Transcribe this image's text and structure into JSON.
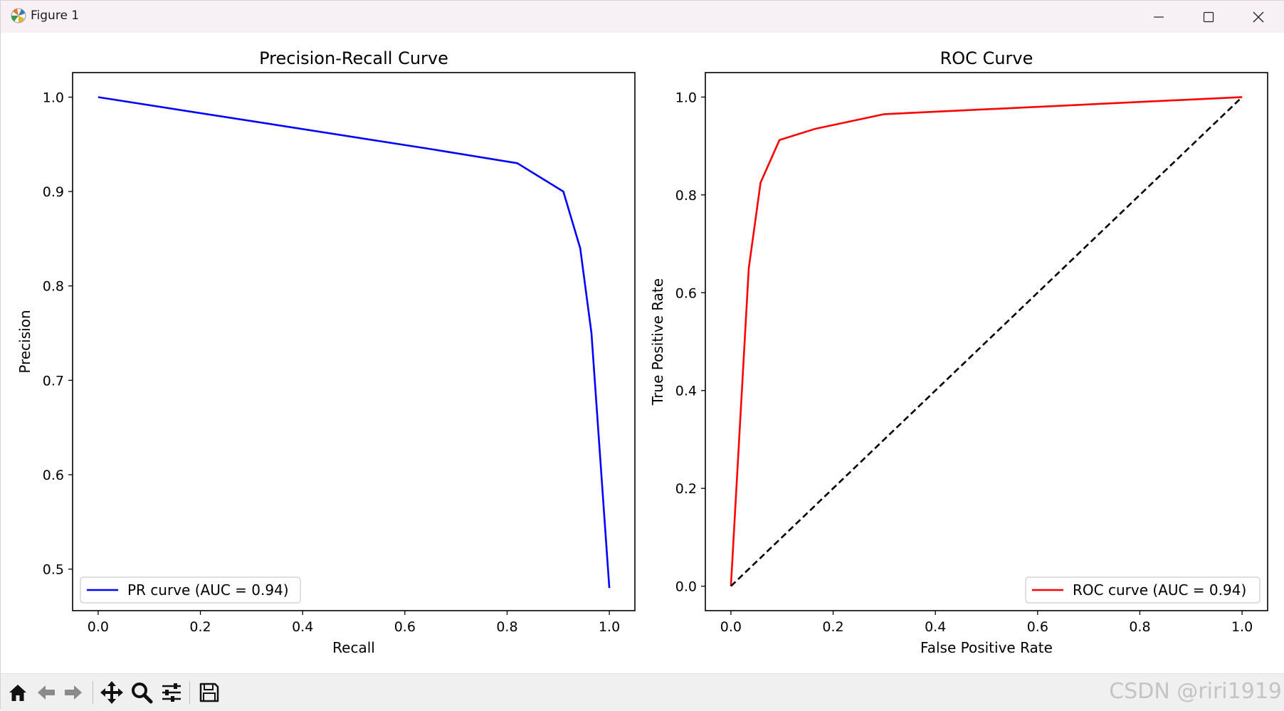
{
  "window": {
    "title": "Figure 1"
  },
  "toolbar": {
    "buttons": [
      {
        "name": "home-icon"
      },
      {
        "name": "back-icon"
      },
      {
        "name": "forward-icon"
      },
      {
        "name": "pan-icon"
      },
      {
        "name": "zoom-icon"
      },
      {
        "name": "configure-subplots-icon"
      },
      {
        "name": "save-icon"
      }
    ]
  },
  "watermark": "CSDN @riri1919",
  "chart_data": [
    {
      "type": "line",
      "title": "Precision-Recall Curve",
      "xlabel": "Recall",
      "ylabel": "Precision",
      "xlim": [
        -0.05,
        1.05
      ],
      "ylim": [
        0.456,
        1.026
      ],
      "xticks": [
        "0.0",
        "0.2",
        "0.4",
        "0.6",
        "0.8",
        "1.0"
      ],
      "yticks": [
        "0.5",
        "0.6",
        "0.7",
        "0.8",
        "0.9",
        "1.0"
      ],
      "grid": false,
      "legend_position": "lower left",
      "series": [
        {
          "name": "PR curve (AUC = 0.94)",
          "color": "#0000ff",
          "style": "solid",
          "x": [
            0.0,
            0.65,
            0.82,
            0.91,
            0.943,
            0.965,
            1.0
          ],
          "y": [
            1.0,
            0.945,
            0.93,
            0.9,
            0.84,
            0.75,
            0.48
          ]
        }
      ]
    },
    {
      "type": "line",
      "title": "ROC Curve",
      "xlabel": "False Positive Rate",
      "ylabel": "True Positive Rate",
      "xlim": [
        -0.05,
        1.05
      ],
      "ylim": [
        -0.05,
        1.05
      ],
      "xticks": [
        "0.0",
        "0.2",
        "0.4",
        "0.6",
        "0.8",
        "1.0"
      ],
      "yticks": [
        "0.0",
        "0.2",
        "0.4",
        "0.6",
        "0.8",
        "1.0"
      ],
      "grid": false,
      "legend_position": "lower right",
      "series": [
        {
          "name": "ROC curve (AUC = 0.94)",
          "color": "#ff0000",
          "style": "solid",
          "x": [
            0.0,
            0.035,
            0.058,
            0.095,
            0.165,
            0.3,
            1.0
          ],
          "y": [
            0.0,
            0.65,
            0.825,
            0.912,
            0.935,
            0.965,
            1.0
          ]
        },
        {
          "color": "#000000",
          "style": "dashed",
          "x": [
            0.0,
            1.0
          ],
          "y": [
            0.0,
            1.0
          ]
        }
      ]
    }
  ]
}
